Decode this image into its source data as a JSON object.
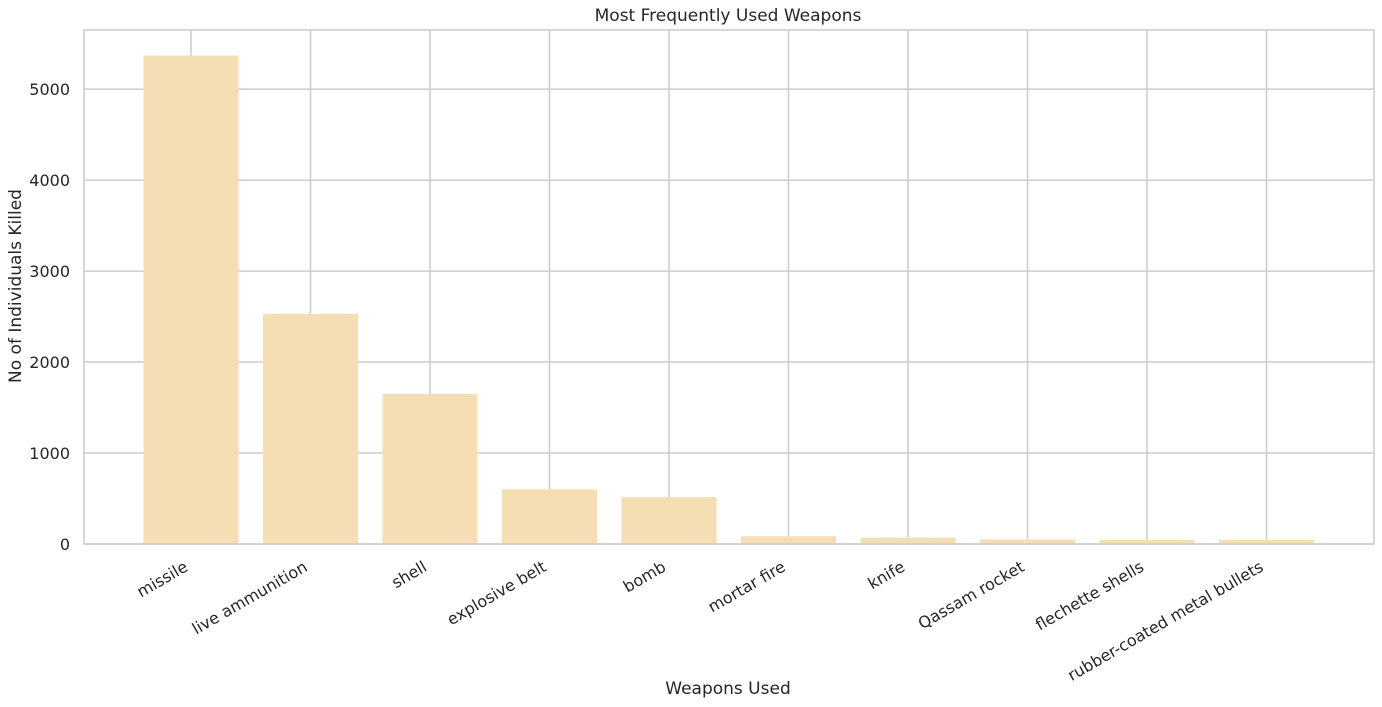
{
  "chart_data": {
    "type": "bar",
    "title": "Most Frequently Used Weapons",
    "xlabel": "Weapons Used",
    "ylabel": "No of Individuals Killed",
    "categories": [
      "missile",
      "live ammunition",
      "shell",
      "explosive belt",
      "bomb",
      "mortar fire",
      "knife",
      "Qassam rocket",
      "flechette shells",
      "rubber-coated metal bullets"
    ],
    "values": [
      5370,
      2530,
      1650,
      600,
      515,
      85,
      70,
      50,
      45,
      45
    ],
    "ylim": [
      0,
      5650
    ],
    "yticks": [
      0,
      1000,
      2000,
      3000,
      4000,
      5000
    ],
    "grid": true,
    "bar_color": "#f5deb3",
    "grid_color": "#cccccc"
  }
}
